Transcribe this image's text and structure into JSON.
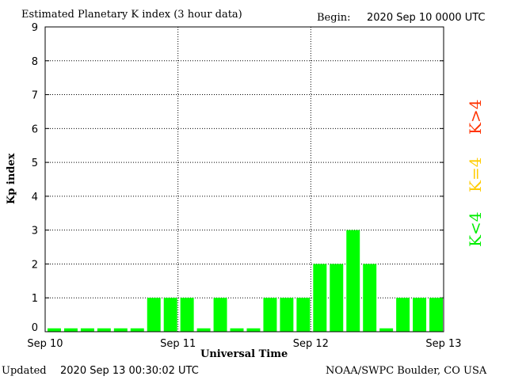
{
  "header": {
    "title": "Estimated Planetary K index (3 hour data)",
    "begin_label": "Begin:",
    "begin_value": "2020 Sep 10 0000 UTC"
  },
  "footer": {
    "updated_label": "Updated",
    "updated_value": "2020 Sep 13 00:30:02 UTC",
    "credit": "NOAA/SWPC Boulder, CO USA"
  },
  "legend": {
    "high": "K>4",
    "mid": "K=4",
    "low": "K<4"
  },
  "colors": {
    "bar_low": "#00ff00",
    "legend_high": "#ff3300",
    "legend_mid": "#ffcc00",
    "legend_low": "#00ee00"
  },
  "chart_data": {
    "type": "bar",
    "xlabel": "Universal Time",
    "ylabel": "Kp index",
    "ylim": [
      0,
      9
    ],
    "yticks": [
      "0",
      "1",
      "2",
      "3",
      "4",
      "5",
      "6",
      "7",
      "8",
      "9"
    ],
    "xticks": [
      "Sep 10",
      "Sep 11",
      "Sep 12",
      "Sep 13"
    ],
    "grid": true,
    "values": [
      0.1,
      0.1,
      0.1,
      0.1,
      0.1,
      0.1,
      1,
      1,
      1,
      0.1,
      1,
      0.1,
      0.1,
      1,
      1,
      1,
      2,
      2,
      3,
      2,
      0.1,
      1,
      1,
      1
    ]
  }
}
